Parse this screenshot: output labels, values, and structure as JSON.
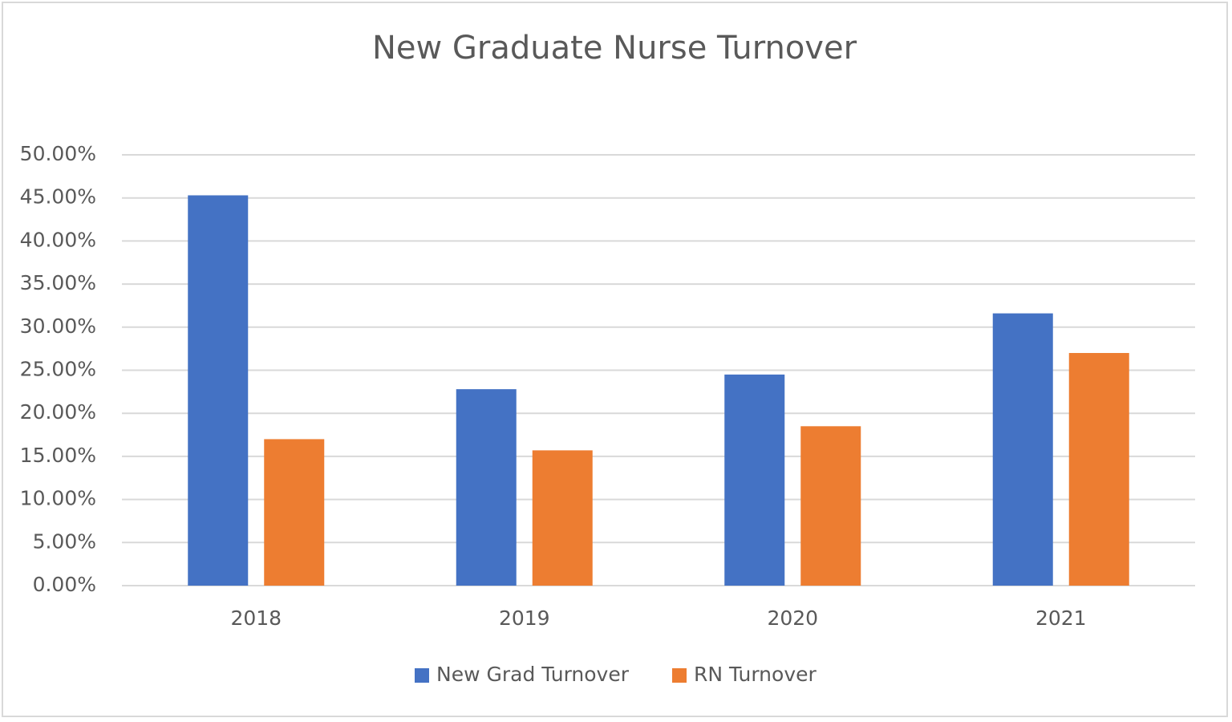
{
  "chart_data": {
    "type": "bar",
    "title": "New Graduate Nurse Turnover",
    "categories": [
      "2018",
      "2019",
      "2020",
      "2021"
    ],
    "series": [
      {
        "name": "New Grad Turnover",
        "color": "#4472c4",
        "values": [
          45.3,
          22.8,
          24.5,
          31.6
        ]
      },
      {
        "name": "RN Turnover",
        "color": "#ed7d31",
        "values": [
          17.0,
          15.7,
          18.5,
          27.0
        ]
      }
    ],
    "ylim": [
      0,
      50
    ],
    "yticks": [
      {
        "value": 0,
        "label": "0.00%"
      },
      {
        "value": 5,
        "label": "5.00%"
      },
      {
        "value": 10,
        "label": "10.00%"
      },
      {
        "value": 15,
        "label": "15.00%"
      },
      {
        "value": 20,
        "label": "20.00%"
      },
      {
        "value": 25,
        "label": "25.00%"
      },
      {
        "value": 30,
        "label": "30.00%"
      },
      {
        "value": 35,
        "label": "35.00%"
      },
      {
        "value": 40,
        "label": "40.00%"
      },
      {
        "value": 45,
        "label": "45.00%"
      },
      {
        "value": 50,
        "label": "50.00%"
      }
    ],
    "grid": true,
    "legend": "bottom"
  }
}
